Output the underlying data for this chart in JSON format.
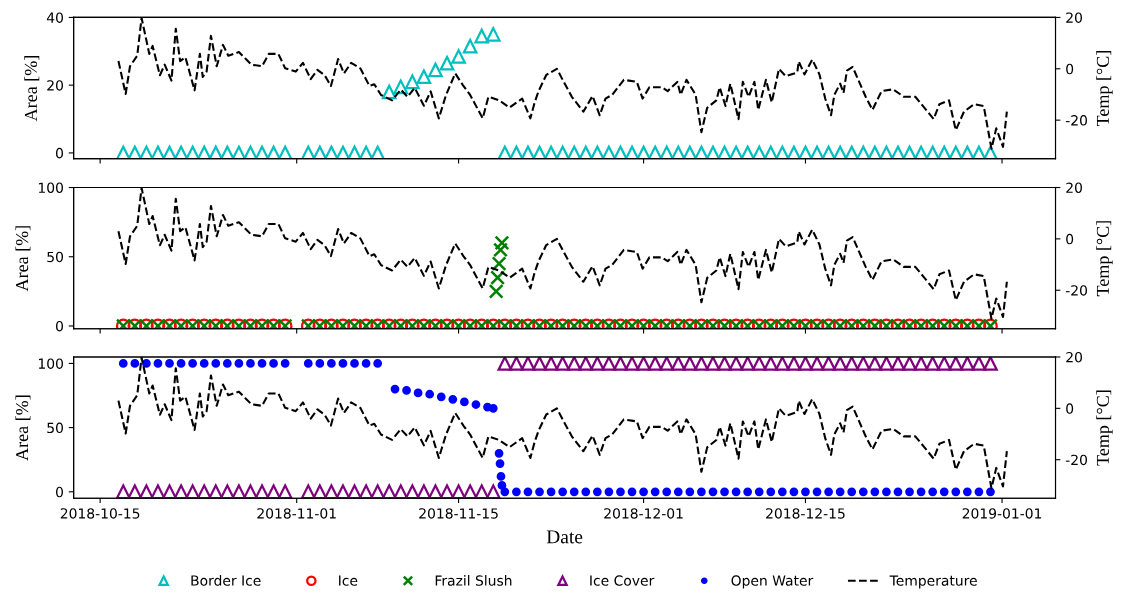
{
  "chart_data": [
    {
      "type": "scatter",
      "ylabel": "Area [%]",
      "y2label": "Temp [°C]",
      "tick_labels": "y",
      "legend": "bottom",
      "xlim": [
        "2018-10-12T17:00",
        "2019-01-05T15:00"
      ],
      "xticks": [
        "2018-10-15",
        "2018-11-01",
        "2018-11-15",
        "2018-12-01",
        "2018-12-15",
        "2019-01-01"
      ],
      "ylim": [
        -1.7,
        40
      ],
      "yticks": [
        0,
        20,
        40
      ],
      "y2lim": [
        -35,
        20
      ],
      "y2ticks": [
        -20,
        0,
        20
      ],
      "x": [
        "2018-10-17",
        "2018-10-18",
        "2018-10-19",
        "2018-10-20",
        "2018-10-21",
        "2018-10-22",
        "2018-10-23",
        "2018-10-24",
        "2018-10-25",
        "2018-10-26",
        "2018-10-27",
        "2018-10-28",
        "2018-10-29",
        "2018-10-30",
        "2018-10-31",
        "2018-11-02",
        "2018-11-03",
        "2018-11-04",
        "2018-11-05",
        "2018-11-06",
        "2018-11-07",
        "2018-11-08",
        "2018-11-09",
        "2018-11-10",
        "2018-11-11",
        "2018-11-12",
        "2018-11-13",
        "2018-11-14",
        "2018-11-15",
        "2018-11-16",
        "2018-11-17",
        "2018-11-18",
        "2018-11-19",
        "2018-11-20",
        "2018-11-21",
        "2018-11-22",
        "2018-11-23",
        "2018-11-24",
        "2018-11-25",
        "2018-11-26",
        "2018-11-27",
        "2018-11-28",
        "2018-11-29",
        "2018-11-30",
        "2018-12-01",
        "2018-12-02",
        "2018-12-03",
        "2018-12-04",
        "2018-12-05",
        "2018-12-06",
        "2018-12-07",
        "2018-12-08",
        "2018-12-09",
        "2018-12-10",
        "2018-12-11",
        "2018-12-12",
        "2018-12-13",
        "2018-12-14",
        "2018-12-15",
        "2018-12-16",
        "2018-12-17",
        "2018-12-18",
        "2018-12-19",
        "2018-12-20",
        "2018-12-21",
        "2018-12-22",
        "2018-12-23",
        "2018-12-24",
        "2018-12-25",
        "2018-12-26",
        "2018-12-27",
        "2018-12-28",
        "2018-12-29",
        "2018-12-30",
        "2018-12-31"
      ],
      "series": [
        {
          "name": "Border Ice",
          "color": "#00bfbf",
          "marker": "triangle",
          "values": [
            0,
            0,
            0,
            0,
            0,
            0,
            0,
            0,
            0,
            0,
            0,
            0,
            0,
            0,
            0,
            0,
            0,
            0,
            0,
            0,
            0,
            0,
            18,
            19.5,
            21,
            22.5,
            24.5,
            26.5,
            28.5,
            31.5,
            34.5,
            35,
            0,
            0,
            0,
            0,
            0,
            0,
            0,
            0,
            0,
            0,
            0,
            0,
            0,
            0,
            0,
            0,
            0,
            0,
            0,
            0,
            0,
            0,
            0,
            0,
            0,
            0,
            0,
            0,
            0,
            0,
            0,
            0,
            0,
            0,
            0,
            0,
            0,
            0,
            0,
            0,
            0,
            0,
            0
          ]
        },
        {
          "name": "Temperature",
          "type": "line",
          "axis": "y2",
          "color": "#000000",
          "line_style": "dashed",
          "marker": "none",
          "x": [
            "2018-10-16T14:00",
            "2018-10-17T05:00",
            "2018-10-17T14:00",
            "2018-10-18T05:00",
            "2018-10-18T14:00",
            "2018-10-19T06:00",
            "2018-10-19T13:00",
            "2018-10-20T04:00",
            "2018-10-20T14:00",
            "2018-10-21T04:00",
            "2018-10-21T13:00",
            "2018-10-21T22:00",
            "2018-10-22T09:00",
            "2018-10-23T04:00",
            "2018-10-23T15:00",
            "2018-10-23T21:00",
            "2018-10-24T05:00",
            "2018-10-24T14:00",
            "2018-10-25T02:00",
            "2018-10-25T15:00",
            "2018-10-26T02:00",
            "2018-10-27T00:00",
            "2018-10-28T02:00",
            "2018-10-29T00:00",
            "2018-10-29T14:00",
            "2018-10-30T10:00",
            "2018-10-31T00:00",
            "2018-10-31T22:00",
            "2018-11-01T13:00",
            "2018-11-02T05:00",
            "2018-11-02T19:00",
            "2018-11-03T10:00",
            "2018-11-03T23:00",
            "2018-11-04T14:00",
            "2018-11-05T02:00",
            "2018-11-05T17:00",
            "2018-11-06T12:00",
            "2018-11-07T07:00",
            "2018-11-07T17:00",
            "2018-11-08T07:00",
            "2018-11-09T06:00",
            "2018-11-10T00:00",
            "2018-11-10T14:00",
            "2018-11-11T05:00",
            "2018-11-12T00:00",
            "2018-11-12T14:00",
            "2018-11-13T07:00",
            "2018-11-13T22:00",
            "2018-11-14T17:00",
            "2018-11-15T10:00",
            "2018-11-16T00:00",
            "2018-11-17T02:00",
            "2018-11-17T14:00",
            "2018-11-18T12:00",
            "2018-11-19T10:00",
            "2018-11-20T12:00",
            "2018-11-21T05:00",
            "2018-11-21T14:00",
            "2018-11-21T22:00",
            "2018-11-22T14:00",
            "2018-11-23T12:00",
            "2018-11-24T00:00",
            "2018-11-24T19:00",
            "2018-11-25T19:00",
            "2018-11-26T14:00",
            "2018-11-27T05:00",
            "2018-11-27T17:00",
            "2018-11-28T07:00",
            "2018-11-29T07:00",
            "2018-11-30T10:00",
            "2018-11-30T22:00",
            "2018-12-01T12:00",
            "2018-12-02T14:00",
            "2018-12-03T02:00",
            "2018-12-03T22:00",
            "2018-12-04T05:00",
            "2018-12-04T17:00",
            "2018-12-05T12:00",
            "2018-12-06T00:00",
            "2018-12-06T12:00",
            "2018-12-07T07:00",
            "2018-12-07T14:00",
            "2018-12-08T02:00",
            "2018-12-08T12:00",
            "2018-12-09T05:00",
            "2018-12-09T14:00",
            "2018-12-10T02:00",
            "2018-12-10T14:00",
            "2018-12-10T22:00",
            "2018-12-11T14:00",
            "2018-12-12T02:00",
            "2018-12-12T17:00",
            "2018-12-13T07:00",
            "2018-12-14T07:00",
            "2018-12-14T10:00",
            "2018-12-14T22:00",
            "2018-12-15T14:00",
            "2018-12-16T05:00",
            "2018-12-16T17:00",
            "2018-12-17T05:00",
            "2018-12-17T12:00",
            "2018-12-18T00:00",
            "2018-12-18T07:00",
            "2018-12-18T14:00",
            "2018-12-19T02:00",
            "2018-12-19T12:00",
            "2018-12-20T05:00",
            "2018-12-20T19:00",
            "2018-12-21T14:00",
            "2018-12-22T14:00",
            "2018-12-23T12:00",
            "2018-12-24T12:00",
            "2018-12-25T07:00",
            "2018-12-26T02:00",
            "2018-12-26T14:00",
            "2018-12-27T10:00",
            "2018-12-28T00:00",
            "2018-12-28T17:00",
            "2018-12-29T14:00",
            "2018-12-30T10:00",
            "2018-12-31T02:00",
            "2018-12-31T12:00",
            "2019-01-01T02:00",
            "2019-01-01T10:00"
          ],
          "values": [
            3.0,
            -9.8,
            1.0,
            5.1,
            19.8,
            5.8,
            8.9,
            -2.5,
            1.6,
            -4.6,
            15.6,
            3.0,
            4.5,
            -8.4,
            5.8,
            -3.2,
            -1.1,
            12.8,
            1.0,
            9.3,
            5.1,
            6.5,
            1.6,
            1.0,
            5.8,
            5.8,
            0.2,
            -1.1,
            2.3,
            -4.0,
            -0.4,
            -2.5,
            -6.7,
            3.8,
            -1.8,
            2.3,
            0.2,
            -6.7,
            -6.0,
            -10.2,
            -12.3,
            -8.1,
            -10.9,
            -7.4,
            -14.4,
            -8.8,
            -19.3,
            -10.2,
            -1.8,
            -6.7,
            -10.2,
            -19.3,
            -10.9,
            -12.3,
            -15.1,
            -11.6,
            -19.3,
            -13.0,
            -8.7,
            -2.4,
            0,
            -4.3,
            -10.9,
            -16.7,
            -10.6,
            -18.1,
            -11.6,
            -10.1,
            -4.3,
            -5.1,
            -11.6,
            -7.2,
            -7.2,
            -8.7,
            -5.1,
            -10.1,
            -4.3,
            -10.1,
            -24.7,
            -15.2,
            -12.3,
            -7.2,
            -14.5,
            -5.8,
            -19.6,
            -5.1,
            -10.9,
            -5.1,
            -16,
            -4.3,
            -13.1,
            0,
            -2.9,
            -1.4,
            2.9,
            -2.2,
            3.6,
            -2.2,
            -11.6,
            -18.1,
            -10.1,
            -5.8,
            -9.4,
            -0.7,
            0.7,
            -3.6,
            -10.9,
            -16,
            -8.7,
            -8.0,
            -10.9,
            -10.9,
            -15.2,
            -19.6,
            -13.8,
            -12.3,
            -23.9,
            -16.7,
            -13.8,
            -14.5,
            -31.1,
            -23.2,
            -30.4,
            -16.7
          ]
        }
      ]
    },
    {
      "type": "scatter",
      "ylabel": "Area [%]",
      "y2label": "Temp [°C]",
      "tick_labels": "y",
      "legend": "bottom",
      "xlim": [
        "2018-10-12T17:00",
        "2019-01-05T15:00"
      ],
      "xticks": [
        "2018-10-15",
        "2018-11-01",
        "2018-11-15",
        "2018-12-01",
        "2018-12-15",
        "2019-01-01"
      ],
      "ylim": [
        -2,
        100
      ],
      "yticks": [
        0,
        50,
        100
      ],
      "y2lim": [
        -35,
        20
      ],
      "y2ticks": [
        -20,
        0,
        20
      ],
      "x": [
        "2018-10-17",
        "2018-10-18",
        "2018-10-19",
        "2018-10-20",
        "2018-10-21",
        "2018-10-22",
        "2018-10-23",
        "2018-10-24",
        "2018-10-25",
        "2018-10-26",
        "2018-10-27",
        "2018-10-28",
        "2018-10-29",
        "2018-10-30",
        "2018-10-31",
        "2018-11-02",
        "2018-11-03",
        "2018-11-04",
        "2018-11-05",
        "2018-11-06",
        "2018-11-07",
        "2018-11-08",
        "2018-11-09",
        "2018-11-10",
        "2018-11-11",
        "2018-11-12",
        "2018-11-13",
        "2018-11-14",
        "2018-11-15",
        "2018-11-16",
        "2018-11-17",
        "2018-11-18",
        "2018-11-19",
        "2018-11-20",
        "2018-11-21",
        "2018-11-22",
        "2018-11-23",
        "2018-11-24",
        "2018-11-25",
        "2018-11-26",
        "2018-11-27",
        "2018-11-28",
        "2018-11-29",
        "2018-11-30",
        "2018-12-01",
        "2018-12-02",
        "2018-12-03",
        "2018-12-04",
        "2018-12-05",
        "2018-12-06",
        "2018-12-07",
        "2018-12-08",
        "2018-12-09",
        "2018-12-10",
        "2018-12-11",
        "2018-12-12",
        "2018-12-13",
        "2018-12-14",
        "2018-12-15",
        "2018-12-16",
        "2018-12-17",
        "2018-12-18",
        "2018-12-19",
        "2018-12-20",
        "2018-12-21",
        "2018-12-22",
        "2018-12-23",
        "2018-12-24",
        "2018-12-25",
        "2018-12-26",
        "2018-12-27",
        "2018-12-28",
        "2018-12-29",
        "2018-12-30",
        "2018-12-31"
      ],
      "series": [
        {
          "name": "Ice",
          "color": "#ff0000",
          "marker": "circle",
          "values": [
            0,
            0,
            0,
            0,
            0,
            0,
            0,
            0,
            0,
            0,
            0,
            0,
            0,
            0,
            0,
            0,
            0,
            0,
            0,
            0,
            0,
            0,
            0,
            0,
            0,
            0,
            0,
            0,
            0,
            0,
            0,
            0,
            0,
            0,
            0,
            0,
            0,
            0,
            0,
            0,
            0,
            0,
            0,
            0,
            0,
            0,
            0,
            0,
            0,
            0,
            0,
            0,
            0,
            0,
            0,
            0,
            0,
            0,
            0,
            0,
            0,
            0,
            0,
            0,
            0,
            0,
            0,
            0,
            0,
            0,
            0,
            0,
            0,
            0,
            0
          ]
        },
        {
          "name": "Frazil Slush",
          "color": "#008000",
          "marker": "cross",
          "x": [
            "2018-10-17",
            "2018-10-18",
            "2018-10-19",
            "2018-10-20",
            "2018-10-21",
            "2018-10-22",
            "2018-10-23",
            "2018-10-24",
            "2018-10-25",
            "2018-10-26",
            "2018-10-27",
            "2018-10-28",
            "2018-10-29",
            "2018-10-30",
            "2018-10-31",
            "2018-11-02",
            "2018-11-03",
            "2018-11-04",
            "2018-11-05",
            "2018-11-06",
            "2018-11-07",
            "2018-11-08",
            "2018-11-09",
            "2018-11-10",
            "2018-11-11",
            "2018-11-12",
            "2018-11-13",
            "2018-11-14",
            "2018-11-15",
            "2018-11-16",
            "2018-11-17",
            "2018-11-18",
            "2018-11-18T06:00",
            "2018-11-18T09:00",
            "2018-11-18T12:00",
            "2018-11-18T15:00",
            "2018-11-18T18:00",
            "2018-11-19",
            "2018-11-20",
            "2018-11-21",
            "2018-11-22",
            "2018-11-23",
            "2018-11-24",
            "2018-11-25",
            "2018-11-26",
            "2018-11-27",
            "2018-11-28",
            "2018-11-29",
            "2018-11-30",
            "2018-12-01",
            "2018-12-02",
            "2018-12-03",
            "2018-12-04",
            "2018-12-05",
            "2018-12-06",
            "2018-12-07",
            "2018-12-08",
            "2018-12-09",
            "2018-12-10",
            "2018-12-11",
            "2018-12-12",
            "2018-12-13",
            "2018-12-14",
            "2018-12-15",
            "2018-12-16",
            "2018-12-17",
            "2018-12-18",
            "2018-12-19",
            "2018-12-20",
            "2018-12-21",
            "2018-12-22",
            "2018-12-23",
            "2018-12-24",
            "2018-12-25",
            "2018-12-26",
            "2018-12-27",
            "2018-12-28",
            "2018-12-29",
            "2018-12-30",
            "2018-12-31"
          ],
          "values": [
            0,
            0,
            0,
            0,
            0,
            0,
            0,
            0,
            0,
            0,
            0,
            0,
            0,
            0,
            0,
            0,
            0,
            0,
            0,
            0,
            0,
            0,
            0,
            0,
            0,
            0,
            0,
            0,
            0,
            0,
            0,
            0,
            25,
            35,
            45,
            55,
            60,
            0,
            0,
            0,
            0,
            0,
            0,
            0,
            0,
            0,
            0,
            0,
            0,
            0,
            0,
            0,
            0,
            0,
            0,
            0,
            0,
            0,
            0,
            0,
            0,
            0,
            0,
            0,
            0,
            0,
            0,
            0,
            0,
            0,
            0,
            0,
            0,
            0,
            0,
            0,
            0,
            0,
            0,
            0
          ]
        },
        {
          "name": "Temperature",
          "type": "line",
          "axis": "y2",
          "color": "#000000",
          "line_style": "dashed",
          "marker": "none",
          "x": [
            "2018-10-16T14:00",
            "2018-10-17T05:00",
            "2018-10-17T14:00",
            "2018-10-18T05:00",
            "2018-10-18T14:00",
            "2018-10-19T06:00",
            "2018-10-19T13:00",
            "2018-10-20T04:00",
            "2018-10-20T14:00",
            "2018-10-21T04:00",
            "2018-10-21T13:00",
            "2018-10-21T22:00",
            "2018-10-22T09:00",
            "2018-10-23T04:00",
            "2018-10-23T15:00",
            "2018-10-23T21:00",
            "2018-10-24T05:00",
            "2018-10-24T14:00",
            "2018-10-25T02:00",
            "2018-10-25T15:00",
            "2018-10-26T02:00",
            "2018-10-27T00:00",
            "2018-10-28T02:00",
            "2018-10-29T00:00",
            "2018-10-29T14:00",
            "2018-10-30T10:00",
            "2018-10-31T00:00",
            "2018-10-31T22:00",
            "2018-11-01T13:00",
            "2018-11-02T05:00",
            "2018-11-02T19:00",
            "2018-11-03T10:00",
            "2018-11-03T23:00",
            "2018-11-04T14:00",
            "2018-11-05T02:00",
            "2018-11-05T17:00",
            "2018-11-06T12:00",
            "2018-11-07T07:00",
            "2018-11-07T17:00",
            "2018-11-08T07:00",
            "2018-11-09T06:00",
            "2018-11-10T00:00",
            "2018-11-10T14:00",
            "2018-11-11T05:00",
            "2018-11-12T00:00",
            "2018-11-12T14:00",
            "2018-11-13T07:00",
            "2018-11-13T22:00",
            "2018-11-14T17:00",
            "2018-11-15T10:00",
            "2018-11-16T00:00",
            "2018-11-17T02:00",
            "2018-11-17T14:00",
            "2018-11-18T12:00",
            "2018-11-19T10:00",
            "2018-11-20T12:00",
            "2018-11-21T05:00",
            "2018-11-21T14:00",
            "2018-11-21T22:00",
            "2018-11-22T14:00",
            "2018-11-23T12:00",
            "2018-11-24T00:00",
            "2018-11-24T19:00",
            "2018-11-25T19:00",
            "2018-11-26T14:00",
            "2018-11-27T05:00",
            "2018-11-27T17:00",
            "2018-11-28T07:00",
            "2018-11-29T07:00",
            "2018-11-30T10:00",
            "2018-11-30T22:00",
            "2018-12-01T12:00",
            "2018-12-02T14:00",
            "2018-12-03T02:00",
            "2018-12-03T22:00",
            "2018-12-04T05:00",
            "2018-12-04T17:00",
            "2018-12-05T12:00",
            "2018-12-06T00:00",
            "2018-12-06T12:00",
            "2018-12-07T07:00",
            "2018-12-07T14:00",
            "2018-12-08T02:00",
            "2018-12-08T12:00",
            "2018-12-09T05:00",
            "2018-12-09T14:00",
            "2018-12-10T02:00",
            "2018-12-10T14:00",
            "2018-12-10T22:00",
            "2018-12-11T14:00",
            "2018-12-12T02:00",
            "2018-12-12T17:00",
            "2018-12-13T07:00",
            "2018-12-14T07:00",
            "2018-12-14T10:00",
            "2018-12-14T22:00",
            "2018-12-15T14:00",
            "2018-12-16T05:00",
            "2018-12-16T17:00",
            "2018-12-17T05:00",
            "2018-12-17T12:00",
            "2018-12-18T00:00",
            "2018-12-18T07:00",
            "2018-12-18T14:00",
            "2018-12-19T02:00",
            "2018-12-19T12:00",
            "2018-12-20T05:00",
            "2018-12-20T19:00",
            "2018-12-21T14:00",
            "2018-12-22T14:00",
            "2018-12-23T12:00",
            "2018-12-24T12:00",
            "2018-12-25T07:00",
            "2018-12-26T02:00",
            "2018-12-26T14:00",
            "2018-12-27T10:00",
            "2018-12-28T00:00",
            "2018-12-28T17:00",
            "2018-12-29T14:00",
            "2018-12-30T10:00",
            "2018-12-31T02:00",
            "2018-12-31T12:00",
            "2019-01-01T02:00",
            "2019-01-01T10:00"
          ],
          "values": [
            3.0,
            -9.8,
            1.0,
            5.1,
            19.8,
            5.8,
            8.9,
            -2.5,
            1.6,
            -4.6,
            15.6,
            3.0,
            4.5,
            -8.4,
            5.8,
            -3.2,
            -1.1,
            12.8,
            1.0,
            9.3,
            5.1,
            6.5,
            1.6,
            1.0,
            5.8,
            5.8,
            0.2,
            -1.1,
            2.3,
            -4.0,
            -0.4,
            -2.5,
            -6.7,
            3.8,
            -1.8,
            2.3,
            0.2,
            -6.7,
            -6.0,
            -10.2,
            -12.3,
            -8.1,
            -10.9,
            -7.4,
            -14.4,
            -8.8,
            -19.3,
            -10.2,
            -1.8,
            -6.7,
            -10.2,
            -19.3,
            -10.9,
            -12.3,
            -15.1,
            -11.6,
            -19.3,
            -13.0,
            -8.7,
            -2.4,
            0,
            -4.3,
            -10.9,
            -16.7,
            -10.6,
            -18.1,
            -11.6,
            -10.1,
            -4.3,
            -5.1,
            -11.6,
            -7.2,
            -7.2,
            -8.7,
            -5.1,
            -10.1,
            -4.3,
            -10.1,
            -24.7,
            -15.2,
            -12.3,
            -7.2,
            -14.5,
            -5.8,
            -19.6,
            -5.1,
            -10.9,
            -5.1,
            -16,
            -4.3,
            -13.1,
            0,
            -2.9,
            -1.4,
            2.9,
            -2.2,
            3.6,
            -2.2,
            -11.6,
            -18.1,
            -10.1,
            -5.8,
            -9.4,
            -0.7,
            0.7,
            -3.6,
            -10.9,
            -16,
            -8.7,
            -8.0,
            -10.9,
            -10.9,
            -15.2,
            -19.6,
            -13.8,
            -12.3,
            -23.9,
            -16.7,
            -13.8,
            -14.5,
            -31.1,
            -23.2,
            -30.4,
            -16.7
          ]
        }
      ]
    },
    {
      "type": "scatter",
      "ylabel": "Area [%]",
      "y2label": "Temp [°C]",
      "xlabel": "Date",
      "legend": "bottom",
      "xlim": [
        "2018-10-12T17:00",
        "2019-01-05T15:00"
      ],
      "xticks": [
        "2018-10-15",
        "2018-11-01",
        "2018-11-15",
        "2018-12-01",
        "2018-12-15",
        "2019-01-01"
      ],
      "ylim": [
        -5,
        105
      ],
      "yticks": [
        0,
        50,
        100
      ],
      "y2lim": [
        -35,
        20
      ],
      "y2ticks": [
        -20,
        0,
        20
      ],
      "x": [
        "2018-10-17",
        "2018-10-18",
        "2018-10-19",
        "2018-10-20",
        "2018-10-21",
        "2018-10-22",
        "2018-10-23",
        "2018-10-24",
        "2018-10-25",
        "2018-10-26",
        "2018-10-27",
        "2018-10-28",
        "2018-10-29",
        "2018-10-30",
        "2018-10-31",
        "2018-11-02",
        "2018-11-03",
        "2018-11-04",
        "2018-11-05",
        "2018-11-06",
        "2018-11-07",
        "2018-11-08",
        "2018-11-09",
        "2018-11-10",
        "2018-11-11",
        "2018-11-12",
        "2018-11-13",
        "2018-11-14",
        "2018-11-15",
        "2018-11-16",
        "2018-11-17",
        "2018-11-18",
        "2018-11-19",
        "2018-11-20",
        "2018-11-21",
        "2018-11-22",
        "2018-11-23",
        "2018-11-24",
        "2018-11-25",
        "2018-11-26",
        "2018-11-27",
        "2018-11-28",
        "2018-11-29",
        "2018-11-30",
        "2018-12-01",
        "2018-12-02",
        "2018-12-03",
        "2018-12-04",
        "2018-12-05",
        "2018-12-06",
        "2018-12-07",
        "2018-12-08",
        "2018-12-09",
        "2018-12-10",
        "2018-12-11",
        "2018-12-12",
        "2018-12-13",
        "2018-12-14",
        "2018-12-15",
        "2018-12-16",
        "2018-12-17",
        "2018-12-18",
        "2018-12-19",
        "2018-12-20",
        "2018-12-21",
        "2018-12-22",
        "2018-12-23",
        "2018-12-24",
        "2018-12-25",
        "2018-12-26",
        "2018-12-27",
        "2018-12-28",
        "2018-12-29",
        "2018-12-30",
        "2018-12-31"
      ],
      "series": [
        {
          "name": "Ice Cover",
          "color": "#800080",
          "marker": "triangle",
          "values": [
            0,
            0,
            0,
            0,
            0,
            0,
            0,
            0,
            0,
            0,
            0,
            0,
            0,
            0,
            0,
            0,
            0,
            0,
            0,
            0,
            0,
            0,
            0,
            0,
            0,
            0,
            0,
            0,
            0,
            0,
            0,
            0,
            100,
            100,
            100,
            100,
            100,
            100,
            100,
            100,
            100,
            100,
            100,
            100,
            100,
            100,
            100,
            100,
            100,
            100,
            100,
            100,
            100,
            100,
            100,
            100,
            100,
            100,
            100,
            100,
            100,
            100,
            100,
            100,
            100,
            100,
            100,
            100,
            100,
            100,
            100,
            100,
            100,
            100,
            100
          ]
        },
        {
          "name": "Open Water",
          "color": "#0000ff",
          "marker": "point",
          "x": [
            "2018-10-17",
            "2018-10-18",
            "2018-10-19",
            "2018-10-20",
            "2018-10-21",
            "2018-10-22",
            "2018-10-23",
            "2018-10-24",
            "2018-10-25",
            "2018-10-26",
            "2018-10-27",
            "2018-10-28",
            "2018-10-29",
            "2018-10-30",
            "2018-10-31",
            "2018-11-02",
            "2018-11-03",
            "2018-11-04",
            "2018-11-05",
            "2018-11-06",
            "2018-11-07",
            "2018-11-08",
            "2018-11-09T12:00",
            "2018-11-10T12:00",
            "2018-11-11T12:00",
            "2018-11-12T12:00",
            "2018-11-13T12:00",
            "2018-11-14T12:00",
            "2018-11-15T12:00",
            "2018-11-16T12:00",
            "2018-11-17T12:00",
            "2018-11-18",
            "2018-11-18T12:00",
            "2018-11-18T14:00",
            "2018-11-18T16:00",
            "2018-11-18T18:00",
            "2018-11-19",
            "2018-11-20",
            "2018-11-21",
            "2018-11-22",
            "2018-11-23",
            "2018-11-24",
            "2018-11-25",
            "2018-11-26",
            "2018-11-27",
            "2018-11-28",
            "2018-11-29",
            "2018-11-30",
            "2018-12-01",
            "2018-12-02",
            "2018-12-03",
            "2018-12-04",
            "2018-12-05",
            "2018-12-06",
            "2018-12-07",
            "2018-12-08",
            "2018-12-09",
            "2018-12-10",
            "2018-12-11",
            "2018-12-12",
            "2018-12-13",
            "2018-12-14",
            "2018-12-15",
            "2018-12-16",
            "2018-12-17",
            "2018-12-18",
            "2018-12-19",
            "2018-12-20",
            "2018-12-21",
            "2018-12-22",
            "2018-12-23",
            "2018-12-24",
            "2018-12-25",
            "2018-12-26",
            "2018-12-27",
            "2018-12-28",
            "2018-12-29",
            "2018-12-30",
            "2018-12-31"
          ],
          "values": [
            100,
            100,
            100,
            100,
            100,
            100,
            100,
            100,
            100,
            100,
            100,
            100,
            100,
            100,
            100,
            100,
            100,
            100,
            100,
            100,
            100,
            100,
            80,
            79,
            77,
            76,
            74,
            72,
            70,
            68,
            66,
            65,
            30,
            22,
            12,
            5,
            0,
            0,
            0,
            0,
            0,
            0,
            0,
            0,
            0,
            0,
            0,
            0,
            0,
            0,
            0,
            0,
            0,
            0,
            0,
            0,
            0,
            0,
            0,
            0,
            0,
            0,
            0,
            0,
            0,
            0,
            0,
            0,
            0,
            0,
            0,
            0,
            0,
            0,
            0,
            0,
            0,
            0,
            0
          ]
        },
        {
          "name": "Temperature",
          "type": "line",
          "axis": "y2",
          "color": "#000000",
          "line_style": "dashed",
          "marker": "none",
          "x": [
            "2018-10-16T14:00",
            "2018-10-17T05:00",
            "2018-10-17T14:00",
            "2018-10-18T05:00",
            "2018-10-18T14:00",
            "2018-10-19T06:00",
            "2018-10-19T13:00",
            "2018-10-20T04:00",
            "2018-10-20T14:00",
            "2018-10-21T04:00",
            "2018-10-21T13:00",
            "2018-10-21T22:00",
            "2018-10-22T09:00",
            "2018-10-23T04:00",
            "2018-10-23T15:00",
            "2018-10-23T21:00",
            "2018-10-24T05:00",
            "2018-10-24T14:00",
            "2018-10-25T02:00",
            "2018-10-25T15:00",
            "2018-10-26T02:00",
            "2018-10-27T00:00",
            "2018-10-28T02:00",
            "2018-10-29T00:00",
            "2018-10-29T14:00",
            "2018-10-30T10:00",
            "2018-10-31T00:00",
            "2018-10-31T22:00",
            "2018-11-01T13:00",
            "2018-11-02T05:00",
            "2018-11-02T19:00",
            "2018-11-03T10:00",
            "2018-11-03T23:00",
            "2018-11-04T14:00",
            "2018-11-05T02:00",
            "2018-11-05T17:00",
            "2018-11-06T12:00",
            "2018-11-07T07:00",
            "2018-11-07T17:00",
            "2018-11-08T07:00",
            "2018-11-09T06:00",
            "2018-11-10T00:00",
            "2018-11-10T14:00",
            "2018-11-11T05:00",
            "2018-11-12T00:00",
            "2018-11-12T14:00",
            "2018-11-13T07:00",
            "2018-11-13T22:00",
            "2018-11-14T17:00",
            "2018-11-15T10:00",
            "2018-11-16T00:00",
            "2018-11-17T02:00",
            "2018-11-17T14:00",
            "2018-11-18T12:00",
            "2018-11-19T10:00",
            "2018-11-20T12:00",
            "2018-11-21T05:00",
            "2018-11-21T14:00",
            "2018-11-21T22:00",
            "2018-11-22T14:00",
            "2018-11-23T12:00",
            "2018-11-24T00:00",
            "2018-11-24T19:00",
            "2018-11-25T19:00",
            "2018-11-26T14:00",
            "2018-11-27T05:00",
            "2018-11-27T17:00",
            "2018-11-28T07:00",
            "2018-11-29T07:00",
            "2018-11-30T10:00",
            "2018-11-30T22:00",
            "2018-12-01T12:00",
            "2018-12-02T14:00",
            "2018-12-03T02:00",
            "2018-12-03T22:00",
            "2018-12-04T05:00",
            "2018-12-04T17:00",
            "2018-12-05T12:00",
            "2018-12-06T00:00",
            "2018-12-06T12:00",
            "2018-12-07T07:00",
            "2018-12-07T14:00",
            "2018-12-08T02:00",
            "2018-12-08T12:00",
            "2018-12-09T05:00",
            "2018-12-09T14:00",
            "2018-12-10T02:00",
            "2018-12-10T14:00",
            "2018-12-10T22:00",
            "2018-12-11T14:00",
            "2018-12-12T02:00",
            "2018-12-12T17:00",
            "2018-12-13T07:00",
            "2018-12-14T07:00",
            "2018-12-14T10:00",
            "2018-12-14T22:00",
            "2018-12-15T14:00",
            "2018-12-16T05:00",
            "2018-12-16T17:00",
            "2018-12-17T05:00",
            "2018-12-17T12:00",
            "2018-12-18T00:00",
            "2018-12-18T07:00",
            "2018-12-18T14:00",
            "2018-12-19T02:00",
            "2018-12-19T12:00",
            "2018-12-20T05:00",
            "2018-12-20T19:00",
            "2018-12-21T14:00",
            "2018-12-22T14:00",
            "2018-12-23T12:00",
            "2018-12-24T12:00",
            "2018-12-25T07:00",
            "2018-12-26T02:00",
            "2018-12-26T14:00",
            "2018-12-27T10:00",
            "2018-12-28T00:00",
            "2018-12-28T17:00",
            "2018-12-29T14:00",
            "2018-12-30T10:00",
            "2018-12-31T02:00",
            "2018-12-31T12:00",
            "2019-01-01T02:00",
            "2019-01-01T10:00"
          ],
          "values": [
            3.0,
            -9.8,
            1.0,
            5.1,
            19.8,
            5.8,
            8.9,
            -2.5,
            1.6,
            -4.6,
            15.6,
            3.0,
            4.5,
            -8.4,
            5.8,
            -3.2,
            -1.1,
            12.8,
            1.0,
            9.3,
            5.1,
            6.5,
            1.6,
            1.0,
            5.8,
            5.8,
            0.2,
            -1.1,
            2.3,
            -4.0,
            -0.4,
            -2.5,
            -6.7,
            3.8,
            -1.8,
            2.3,
            0.2,
            -6.7,
            -6.0,
            -10.2,
            -12.3,
            -8.1,
            -10.9,
            -7.4,
            -14.4,
            -8.8,
            -19.3,
            -10.2,
            -1.8,
            -6.7,
            -10.2,
            -19.3,
            -10.9,
            -12.3,
            -15.1,
            -11.6,
            -19.3,
            -13.0,
            -8.7,
            -2.4,
            0,
            -4.3,
            -10.9,
            -16.7,
            -10.6,
            -18.1,
            -11.6,
            -10.1,
            -4.3,
            -5.1,
            -11.6,
            -7.2,
            -7.2,
            -8.7,
            -5.1,
            -10.1,
            -4.3,
            -10.1,
            -24.7,
            -15.2,
            -12.3,
            -7.2,
            -14.5,
            -5.8,
            -19.6,
            -5.1,
            -10.9,
            -5.1,
            -16,
            -4.3,
            -13.1,
            0,
            -2.9,
            -1.4,
            2.9,
            -2.2,
            3.6,
            -2.2,
            -11.6,
            -18.1,
            -10.1,
            -5.8,
            -9.4,
            -0.7,
            0.7,
            -3.6,
            -10.9,
            -16,
            -8.7,
            -8.0,
            -10.9,
            -10.9,
            -15.2,
            -19.6,
            -13.8,
            -12.3,
            -23.9,
            -16.7,
            -13.8,
            -14.5,
            -31.1,
            -23.2,
            -30.4,
            -16.7
          ]
        }
      ]
    }
  ]
}
